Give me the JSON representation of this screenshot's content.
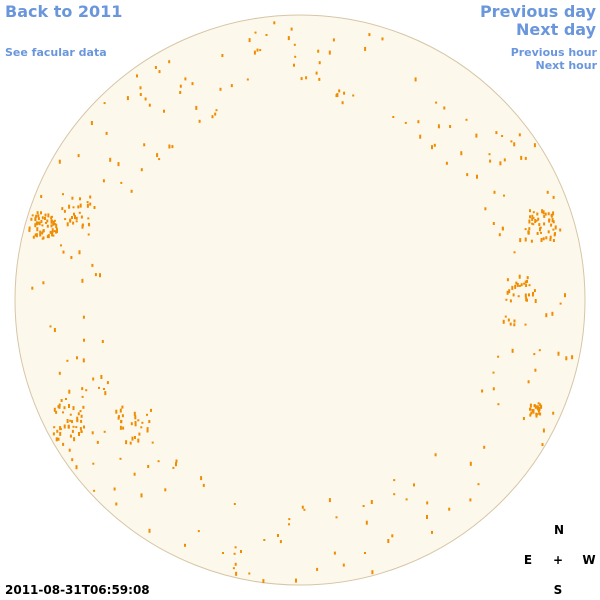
{
  "navigation": {
    "back": "Back to 2011",
    "facular": "See facular data",
    "previous_day": "Previous day",
    "next_day": "Next day",
    "previous_hour": "Previous hour",
    "next_hour": "Next hour"
  },
  "compass": {
    "north": "N",
    "east": "E",
    "center": "+",
    "west": "W",
    "south": "S"
  },
  "timestamp": "2011-08-31T06:59:08"
}
